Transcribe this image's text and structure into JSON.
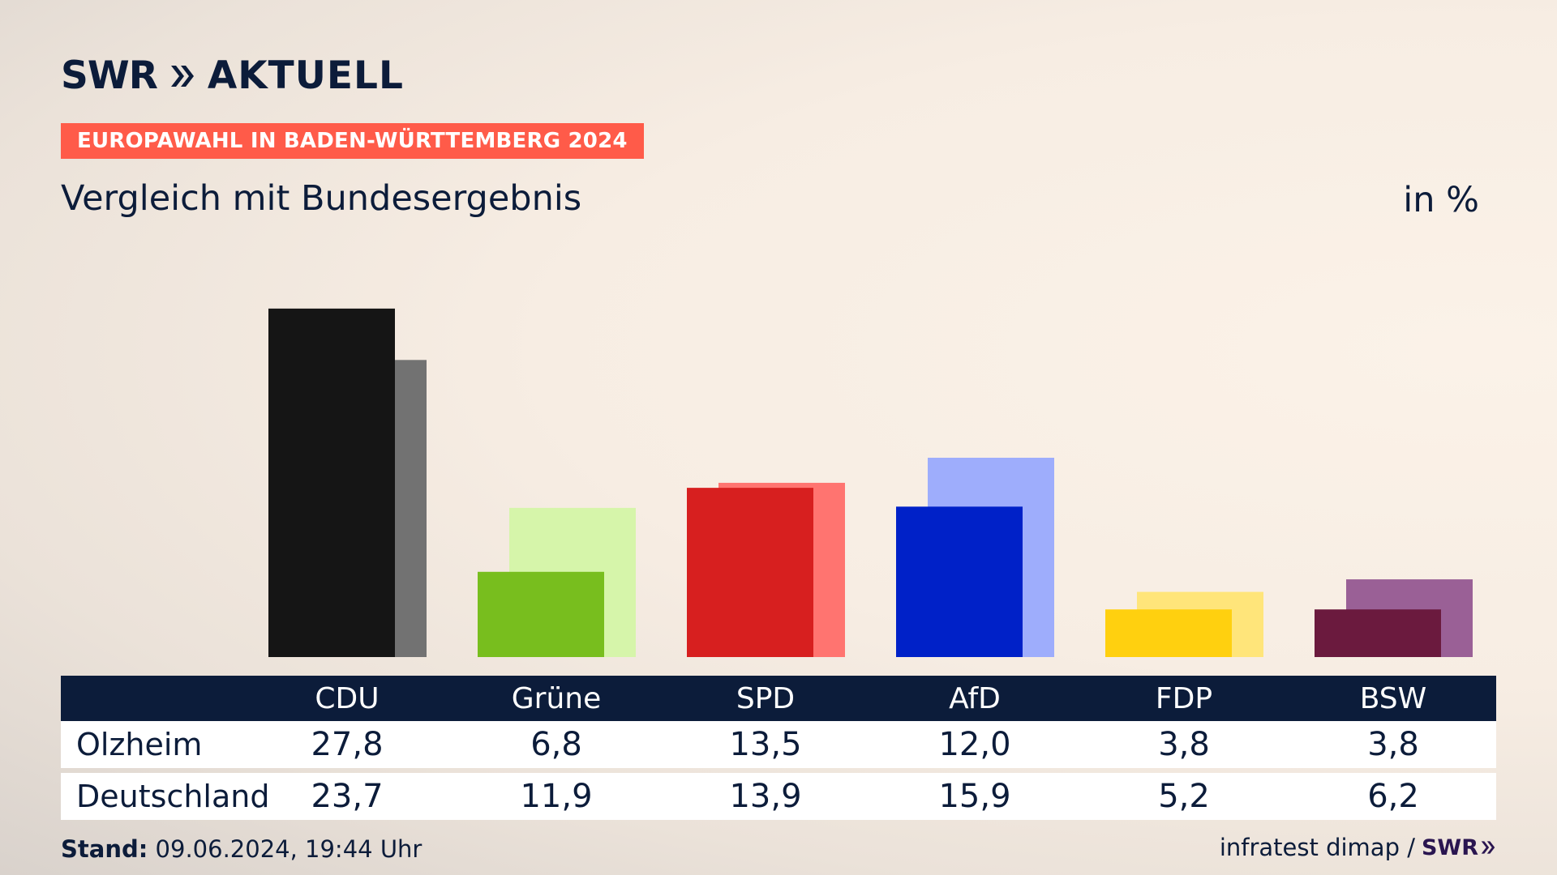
{
  "logo": {
    "brand": "SWR",
    "product": "AKTUELL"
  },
  "banner": "EUROPAWAHL IN BADEN-WÜRTTEMBERG 2024",
  "subtitle": "Vergleich mit Bundesergebnis",
  "unit": "in %",
  "footer": {
    "stand_label": "Stand:",
    "stand_value": "09.06.2024, 19:44 Uhr",
    "source": "infratest dimap /",
    "source_brand": "SWR"
  },
  "table": {
    "rows": [
      {
        "label": "Olzheim"
      },
      {
        "label": "Deutschland"
      }
    ]
  },
  "chart_data": {
    "type": "bar",
    "categories": [
      "CDU",
      "Grüne",
      "SPD",
      "AfD",
      "FDP",
      "BSW"
    ],
    "series": [
      {
        "name": "Olzheim",
        "values": [
          27.8,
          6.8,
          13.5,
          12.0,
          3.8,
          3.8
        ],
        "labels": [
          "27,8",
          "6,8",
          "13,5",
          "12,0",
          "3,8",
          "3,8"
        ],
        "colors": [
          "#151515",
          "#78be1e",
          "#d71f1f",
          "#0021c8",
          "#ffd00f",
          "#6b1a3e"
        ]
      },
      {
        "name": "Deutschland",
        "values": [
          23.7,
          11.9,
          13.9,
          15.9,
          5.2,
          6.2
        ],
        "labels": [
          "23,7",
          "11,9",
          "13,9",
          "15,9",
          "5,2",
          "6,2"
        ],
        "colors": [
          "#727272",
          "#d6f5aa",
          "#ff7470",
          "#9eadfc",
          "#ffe57a",
          "#9a6096"
        ]
      }
    ],
    "ylim": [
      0,
      30
    ],
    "grid": false,
    "legend": "table-below"
  }
}
